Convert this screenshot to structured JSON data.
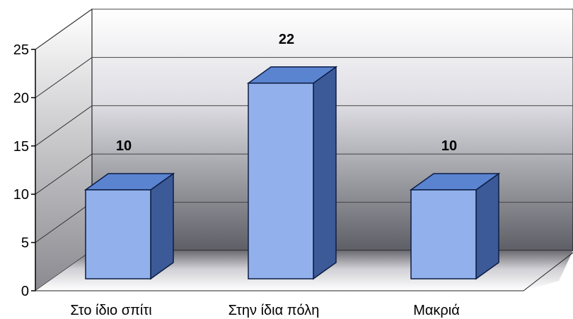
{
  "chart_data": {
    "type": "bar",
    "categories": [
      "Στο ίδιο σπίτι",
      "Στην ίδια πόλη",
      "Μακριά"
    ],
    "values": [
      10,
      22,
      10
    ],
    "data_labels": [
      "10",
      "22",
      "10"
    ],
    "ylim": [
      0,
      25
    ],
    "yticks": [
      "0",
      "5",
      "10",
      "15",
      "20",
      "25"
    ],
    "grid": true,
    "three_d": true,
    "colors": {
      "bar_front": "#92b1ec",
      "bar_top": "#5a84d0",
      "bar_side": "#3c5a98",
      "edge": "#0c1c44",
      "back_wall_top": "#ffffff",
      "back_wall_bottom": "#5e5e66",
      "floor_front": "#ffffff",
      "floor_back": "#6a6a70"
    }
  }
}
